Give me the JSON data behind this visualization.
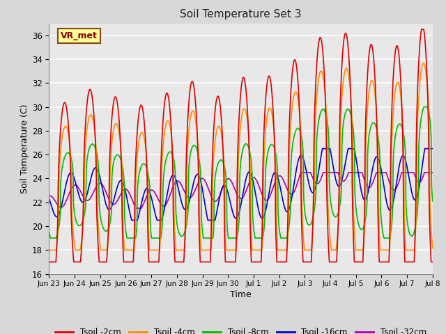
{
  "title": "Soil Temperature Set 3",
  "xlabel": "Time",
  "ylabel": "Soil Temperature (C)",
  "ylim": [
    16,
    37
  ],
  "yticks": [
    16,
    18,
    20,
    22,
    24,
    26,
    28,
    30,
    32,
    34,
    36
  ],
  "plot_bg": "#e8e8e8",
  "fig_bg": "#d8d8d8",
  "grid_color": "#ffffff",
  "annotation_text": "VR_met",
  "annotation_bg": "#ffff99",
  "annotation_border": "#8B4513",
  "series": {
    "Tsoil -2cm": {
      "color": "#dd0000",
      "lw": 1.2
    },
    "Tsoil -4cm": {
      "color": "#ff8c00",
      "lw": 1.2
    },
    "Tsoil -8cm": {
      "color": "#00bb00",
      "lw": 1.2
    },
    "Tsoil -16cm": {
      "color": "#0000cc",
      "lw": 1.2
    },
    "Tsoil -32cm": {
      "color": "#aa00aa",
      "lw": 1.2
    }
  },
  "xtick_labels": [
    "Jun 23",
    "Jun 24",
    "Jun 25",
    "Jun 26",
    "Jun 27",
    "Jun 28",
    "Jun 29",
    "Jun 30",
    "Jul 1",
    "Jul 2",
    "Jul 3",
    "Jul 4",
    "Jul 5",
    "Jul 6",
    "Jul 7",
    "Jul 8"
  ],
  "xtick_positions": [
    0,
    1,
    2,
    3,
    4,
    5,
    6,
    7,
    8,
    9,
    10,
    11,
    12,
    13,
    14,
    15
  ],
  "figsize": [
    6.4,
    4.8
  ],
  "dpi": 100
}
